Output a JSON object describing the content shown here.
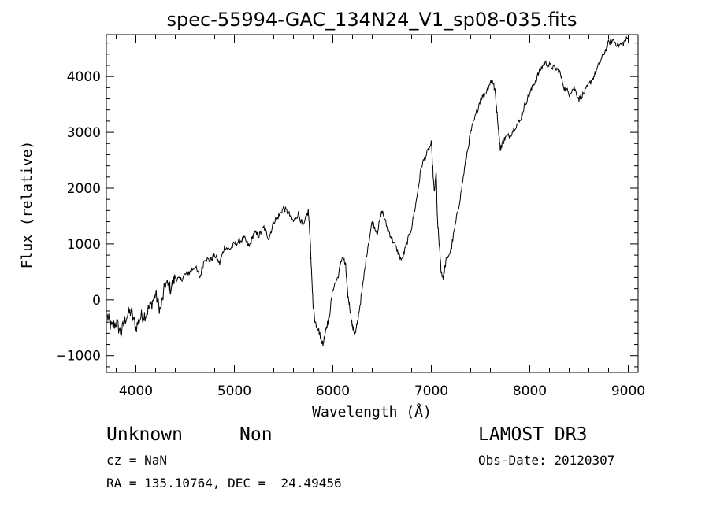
{
  "chart_data": {
    "type": "line",
    "title": "spec-55994-GAC_134N24_V1_sp08-035.fits",
    "xlabel": "Wavelength (Å)",
    "ylabel": "Flux (relative)",
    "xlim": [
      3700,
      9100
    ],
    "ylim": [
      -1300,
      4750
    ],
    "xticks": [
      4000,
      5000,
      6000,
      7000,
      8000,
      9000
    ],
    "yticks": [
      -1000,
      0,
      1000,
      2000,
      3000,
      4000
    ],
    "ytick_labels": [
      "−1000",
      "0",
      "1000",
      "2000",
      "3000",
      "4000"
    ],
    "series": [
      {
        "name": "flux",
        "x": [
          3710,
          3750,
          3800,
          3850,
          3900,
          3950,
          4000,
          4050,
          4100,
          4150,
          4200,
          4250,
          4300,
          4350,
          4400,
          4450,
          4500,
          4550,
          4600,
          4650,
          4700,
          4750,
          4800,
          4850,
          4900,
          4950,
          5000,
          5050,
          5100,
          5150,
          5200,
          5250,
          5300,
          5350,
          5400,
          5450,
          5500,
          5550,
          5600,
          5650,
          5700,
          5750,
          5770,
          5780,
          5800,
          5820,
          5850,
          5880,
          5900,
          5930,
          5960,
          6000,
          6050,
          6100,
          6130,
          6150,
          6170,
          6200,
          6230,
          6250,
          6300,
          6350,
          6400,
          6450,
          6500,
          6550,
          6600,
          6650,
          6700,
          6750,
          6800,
          6850,
          6900,
          6950,
          7000,
          7030,
          7050,
          7060,
          7080,
          7100,
          7120,
          7150,
          7200,
          7250,
          7300,
          7350,
          7400,
          7450,
          7500,
          7550,
          7600,
          7620,
          7650,
          7680,
          7700,
          7720,
          7750,
          7800,
          7850,
          7900,
          7950,
          8000,
          8050,
          8100,
          8150,
          8200,
          8250,
          8300,
          8350,
          8400,
          8450,
          8500,
          8550,
          8600,
          8650,
          8700,
          8750,
          8800,
          8850,
          8900,
          8950,
          9000
        ],
        "y": [
          -300,
          -500,
          -400,
          -600,
          -300,
          -200,
          -500,
          -300,
          -250,
          -100,
          100,
          -200,
          300,
          200,
          400,
          350,
          450,
          500,
          600,
          400,
          750,
          700,
          800,
          650,
          950,
          900,
          1000,
          1050,
          1100,
          950,
          1200,
          1150,
          1300,
          1100,
          1400,
          1500,
          1650,
          1550,
          1400,
          1550,
          1300,
          1600,
          1100,
          600,
          -100,
          -400,
          -500,
          -700,
          -800,
          -500,
          -350,
          200,
          400,
          800,
          600,
          100,
          -100,
          -500,
          -600,
          -400,
          200,
          900,
          1400,
          1200,
          1600,
          1300,
          1100,
          900,
          700,
          1000,
          1300,
          1800,
          2400,
          2600,
          2800,
          1900,
          2300,
          1500,
          1000,
          500,
          400,
          700,
          900,
          1400,
          1900,
          2500,
          3000,
          3300,
          3600,
          3700,
          3900,
          3950,
          3700,
          3100,
          2700,
          2800,
          2900,
          2950,
          3100,
          3200,
          3500,
          3700,
          3900,
          4100,
          4250,
          4200,
          4150,
          4100,
          3800,
          3700,
          3800,
          3600,
          3700,
          3850,
          4000,
          4200,
          4400,
          4600,
          4650,
          4550,
          4600,
          4700
        ]
      }
    ]
  },
  "info": {
    "object_class": "Unknown",
    "subclass": "Non",
    "cz": "cz = NaN",
    "coords": "RA = 135.10764, DEC =  24.49456",
    "survey": "LAMOST DR3",
    "obs_date": "Obs-Date: 20120307"
  }
}
